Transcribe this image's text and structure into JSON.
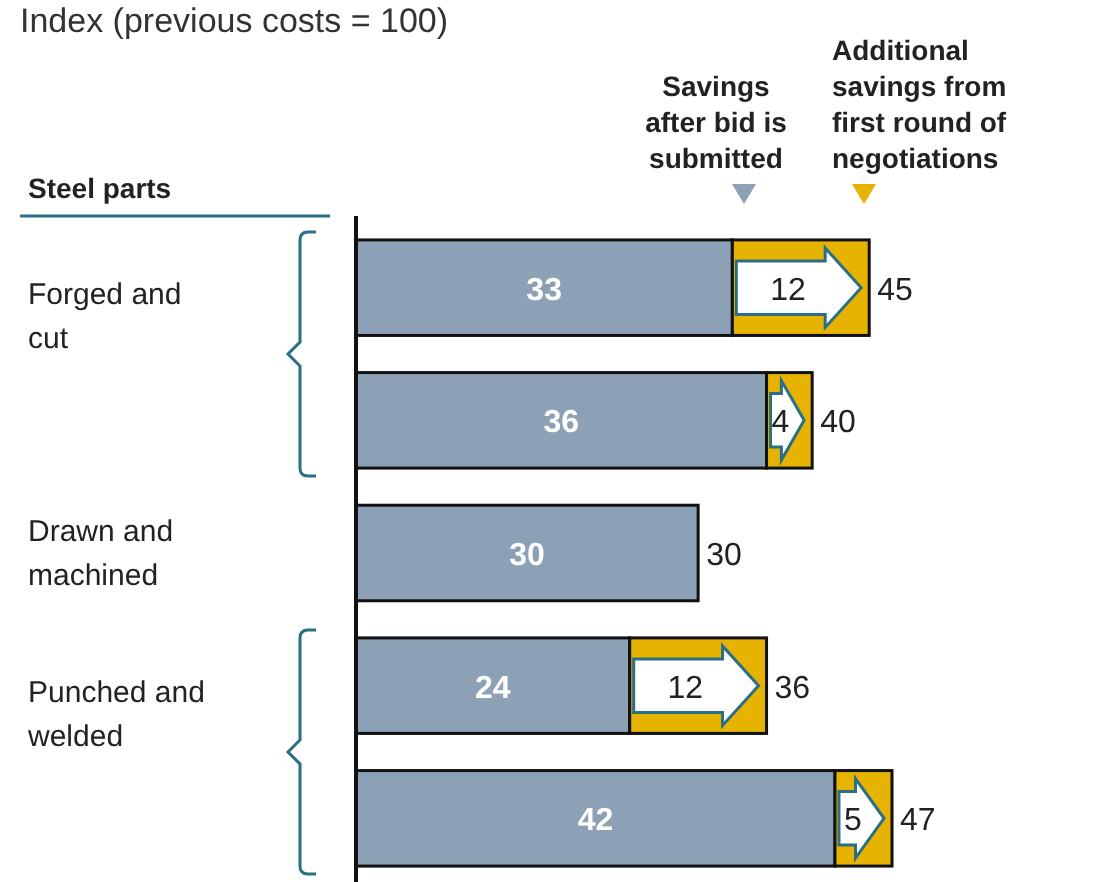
{
  "chart_data": {
    "type": "bar",
    "orientation": "horizontal",
    "stacked": true,
    "title": "Index (previous costs = 100)",
    "ylabel": "Steel parts",
    "categories": [
      "Forged and cut",
      null,
      "Drawn and machined",
      "Punched and welded",
      null
    ],
    "series": [
      {
        "name": "Savings after bid is submitted",
        "color": "#8ca1b6",
        "values": [
          33,
          36,
          30,
          24,
          42
        ]
      },
      {
        "name": "Additional savings from first round of negotiations",
        "color": "#e6b400",
        "values": [
          12,
          4,
          null,
          12,
          5
        ]
      }
    ],
    "data_labels": true,
    "totals": [
      "45",
      "40",
      "30",
      "36",
      "47"
    ],
    "legend": "top right",
    "marker": "triangle"
  }
}
